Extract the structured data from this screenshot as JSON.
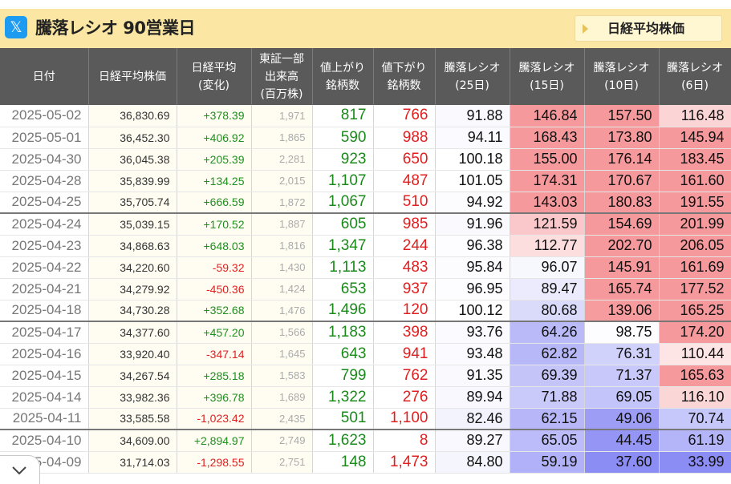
{
  "header": {
    "title": "騰落レシオ 90営業日",
    "x_logo": "𝕏",
    "nikkei_button": "日経平均株価"
  },
  "columns": [
    "日付",
    "日経平均株価",
    "日経平均\n(変化)",
    "東証一部\n出来高\n(百万株)",
    "値上がり\n銘柄数",
    "値下がり\n銘柄数",
    "騰落レシオ\n(25日)",
    "騰落レシオ\n(15日)",
    "騰落レシオ\n(10日)",
    "騰落レシオ\n(6日)"
  ],
  "colors": {
    "header_band": "#fbe7a3",
    "header_cells": "#5a5a5a",
    "positive": "#1f8f1f",
    "negative": "#e02020",
    "hot": "#f6999c",
    "cold": "#8b8cf4"
  },
  "rows": [
    {
      "date": "2025-05-02",
      "nikkei": "36,830.69",
      "change": "+378.39",
      "volume": "1,971",
      "adv": "817",
      "dec": "766",
      "r25": "91.88",
      "r15": "146.84",
      "r10": "157.50",
      "r6": "116.48",
      "week_end": false
    },
    {
      "date": "2025-05-01",
      "nikkei": "36,452.30",
      "change": "+406.92",
      "volume": "1,865",
      "adv": "590",
      "dec": "988",
      "r25": "94.11",
      "r15": "168.43",
      "r10": "173.80",
      "r6": "145.94",
      "week_end": false
    },
    {
      "date": "2025-04-30",
      "nikkei": "36,045.38",
      "change": "+205.39",
      "volume": "2,281",
      "adv": "923",
      "dec": "650",
      "r25": "100.18",
      "r15": "155.00",
      "r10": "176.14",
      "r6": "183.45",
      "week_end": false
    },
    {
      "date": "2025-04-28",
      "nikkei": "35,839.99",
      "change": "+134.25",
      "volume": "2,015",
      "adv": "1,107",
      "dec": "487",
      "r25": "101.05",
      "r15": "174.31",
      "r10": "170.67",
      "r6": "161.60",
      "week_end": false
    },
    {
      "date": "2025-04-25",
      "nikkei": "35,705.74",
      "change": "+666.59",
      "volume": "1,872",
      "adv": "1,067",
      "dec": "510",
      "r25": "94.92",
      "r15": "143.03",
      "r10": "180.83",
      "r6": "191.55",
      "week_end": true
    },
    {
      "date": "2025-04-24",
      "nikkei": "35,039.15",
      "change": "+170.52",
      "volume": "1,887",
      "adv": "605",
      "dec": "985",
      "r25": "91.96",
      "r15": "121.59",
      "r10": "154.69",
      "r6": "201.99",
      "week_end": false
    },
    {
      "date": "2025-04-23",
      "nikkei": "34,868.63",
      "change": "+648.03",
      "volume": "1,816",
      "adv": "1,347",
      "dec": "244",
      "r25": "96.38",
      "r15": "112.77",
      "r10": "202.70",
      "r6": "206.05",
      "week_end": false
    },
    {
      "date": "2025-04-22",
      "nikkei": "34,220.60",
      "change": "-59.32",
      "volume": "1,430",
      "adv": "1,113",
      "dec": "483",
      "r25": "95.84",
      "r15": "96.07",
      "r10": "145.91",
      "r6": "161.69",
      "week_end": false
    },
    {
      "date": "2025-04-21",
      "nikkei": "34,279.92",
      "change": "-450.36",
      "volume": "1,424",
      "adv": "653",
      "dec": "937",
      "r25": "96.95",
      "r15": "89.47",
      "r10": "165.74",
      "r6": "177.52",
      "week_end": false
    },
    {
      "date": "2025-04-18",
      "nikkei": "34,730.28",
      "change": "+352.68",
      "volume": "1,476",
      "adv": "1,496",
      "dec": "120",
      "r25": "100.12",
      "r15": "80.68",
      "r10": "139.06",
      "r6": "165.25",
      "week_end": true
    },
    {
      "date": "2025-04-17",
      "nikkei": "34,377.60",
      "change": "+457.20",
      "volume": "1,566",
      "adv": "1,183",
      "dec": "398",
      "r25": "93.76",
      "r15": "64.26",
      "r10": "98.75",
      "r6": "174.20",
      "week_end": false
    },
    {
      "date": "2025-04-16",
      "nikkei": "33,920.40",
      "change": "-347.14",
      "volume": "1,645",
      "adv": "643",
      "dec": "941",
      "r25": "93.48",
      "r15": "62.82",
      "r10": "76.31",
      "r6": "110.44",
      "week_end": false
    },
    {
      "date": "2025-04-15",
      "nikkei": "34,267.54",
      "change": "+285.18",
      "volume": "1,583",
      "adv": "799",
      "dec": "762",
      "r25": "91.35",
      "r15": "69.39",
      "r10": "71.37",
      "r6": "165.63",
      "week_end": false
    },
    {
      "date": "2025-04-14",
      "nikkei": "33,982.36",
      "change": "+396.78",
      "volume": "1,689",
      "adv": "1,322",
      "dec": "276",
      "r25": "89.94",
      "r15": "71.88",
      "r10": "69.05",
      "r6": "116.10",
      "week_end": false
    },
    {
      "date": "2025-04-11",
      "nikkei": "33,585.58",
      "change": "-1,023.42",
      "volume": "2,435",
      "adv": "501",
      "dec": "1,100",
      "r25": "82.46",
      "r15": "62.15",
      "r10": "49.06",
      "r6": "70.74",
      "week_end": true
    },
    {
      "date": "2025-04-10",
      "nikkei": "34,609.00",
      "change": "+2,894.97",
      "volume": "2,749",
      "adv": "1,623",
      "dec": "8",
      "r25": "89.27",
      "r15": "65.05",
      "r10": "44.45",
      "r6": "61.19",
      "week_end": false
    },
    {
      "date": "2025-04-09",
      "nikkei": "31,714.03",
      "change": "-1,298.55",
      "volume": "2,751",
      "adv": "148",
      "dec": "1,473",
      "r25": "84.80",
      "r15": "59.19",
      "r10": "37.60",
      "r6": "33.99",
      "week_end": false
    }
  ]
}
